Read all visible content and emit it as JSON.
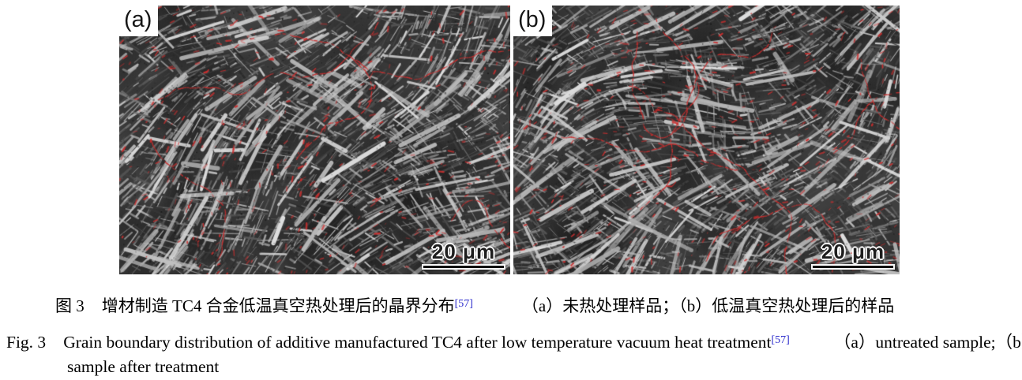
{
  "figure": {
    "panels": [
      {
        "label": "(a)",
        "scale_label": "20 μm"
      },
      {
        "label": "(b)",
        "scale_label": "20 μm"
      }
    ],
    "caption_zh": {
      "fig_label": "图 3",
      "title": "增材制造 TC4 合金低温真空热处理后的晶界分布",
      "reference": "[57]",
      "part_a": "（a）未热处理样品；",
      "part_b": "（b）低温真空热处理后的样品"
    },
    "caption_en": {
      "fig_label": "Fig. 3",
      "title": "Grain boundary distribution of additive manufactured TC4 after low temperature vacuum heat treatment",
      "reference": "[57]",
      "part_a": "（a）untreated sample;",
      "part_b": "（b）sample after treatment"
    },
    "colors": {
      "reference_link": "#2a2acc",
      "grain_boundary_red": "#cc2e2e"
    }
  }
}
